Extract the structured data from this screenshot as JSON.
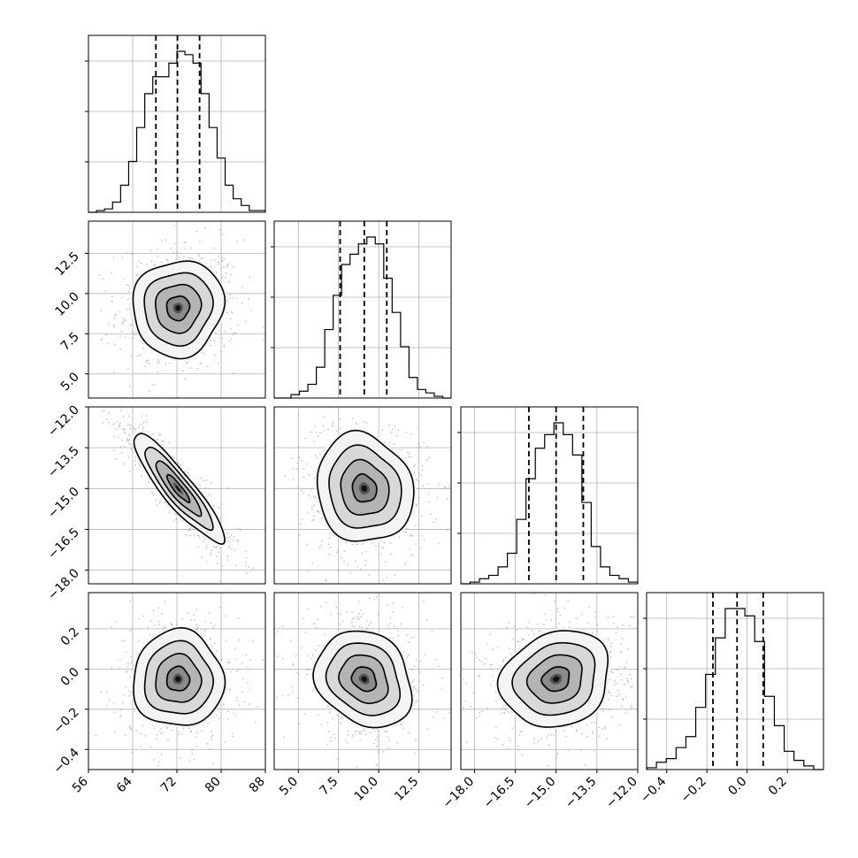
{
  "chart_data": {
    "type": "corner",
    "grid": true,
    "variables": [
      {
        "ticks": [
          "56",
          "64",
          "72",
          "80",
          "88"
        ],
        "range": [
          56,
          88
        ]
      },
      {
        "ticks": [
          "5.0",
          "7.5",
          "10.0",
          "12.5"
        ],
        "range": [
          3.5,
          14.5
        ]
      },
      {
        "ticks": [
          "−18.0",
          "−16.5",
          "−15.0",
          "−13.5",
          "−12.0"
        ],
        "range": [
          -18.5,
          -12
        ]
      },
      {
        "ticks": [
          "−0.4",
          "−0.2",
          "0.0",
          "0.2"
        ],
        "range": [
          -0.5,
          0.38
        ]
      }
    ],
    "histograms": [
      {
        "variable": 0,
        "edges": [
          56,
          88
        ],
        "counts": [
          0,
          1,
          2,
          6,
          16,
          30,
          50,
          70,
          80,
          80,
          88,
          95,
          93,
          88,
          70,
          50,
          32,
          16,
          8,
          4,
          1,
          1
        ],
        "quantiles": [
          68.2,
          72.1,
          76.1
        ]
      },
      {
        "variable": 1,
        "edges": [
          3.5,
          14.5
        ],
        "counts": [
          0,
          0,
          2,
          4,
          8,
          18,
          40,
          60,
          78,
          84,
          90,
          94,
          90,
          70,
          50,
          30,
          12,
          5,
          3,
          1,
          0
        ],
        "quantiles": [
          7.6,
          9.1,
          10.5
        ]
      },
      {
        "variable": 2,
        "edges": [
          -18.5,
          -12
        ],
        "counts": [
          0,
          1,
          3,
          5,
          10,
          18,
          38,
          62,
          80,
          88,
          95,
          88,
          76,
          48,
          22,
          10,
          5,
          3,
          1
        ],
        "quantiles": [
          -16.0,
          -15.0,
          -14.0
        ]
      },
      {
        "variable": 3,
        "edges": [
          -0.5,
          0.38
        ],
        "counts": [
          1,
          4,
          6,
          12,
          18,
          34,
          52,
          72,
          88,
          88,
          84,
          70,
          40,
          24,
          10,
          5,
          2,
          0
        ],
        "quantiles": [
          -0.17,
          -0.05,
          0.08
        ]
      }
    ],
    "pairs": [
      {
        "x": 0,
        "y": 1,
        "mean": [
          72.2,
          9.1
        ],
        "sd": [
          4.1,
          1.5
        ],
        "rho": 0.05
      },
      {
        "x": 0,
        "y": 2,
        "mean": [
          72.2,
          -15.0
        ],
        "sd": [
          4.1,
          1.0
        ],
        "rho": -0.9
      },
      {
        "x": 1,
        "y": 2,
        "mean": [
          9.1,
          -15.0
        ],
        "sd": [
          1.5,
          1.0
        ],
        "rho": -0.1
      },
      {
        "x": 0,
        "y": 3,
        "mean": [
          72.2,
          -0.05
        ],
        "sd": [
          4.1,
          0.12
        ],
        "rho": 0.0
      },
      {
        "x": 1,
        "y": 3,
        "mean": [
          9.1,
          -0.05
        ],
        "sd": [
          1.5,
          0.12
        ],
        "rho": -0.2
      },
      {
        "x": 2,
        "y": 3,
        "mean": [
          -15.0,
          -0.05
        ],
        "sd": [
          1.0,
          0.12
        ],
        "rho": 0.15
      }
    ],
    "contour_levels_sigma": [
      0.5,
      1.0,
      1.5,
      2.0
    ]
  }
}
